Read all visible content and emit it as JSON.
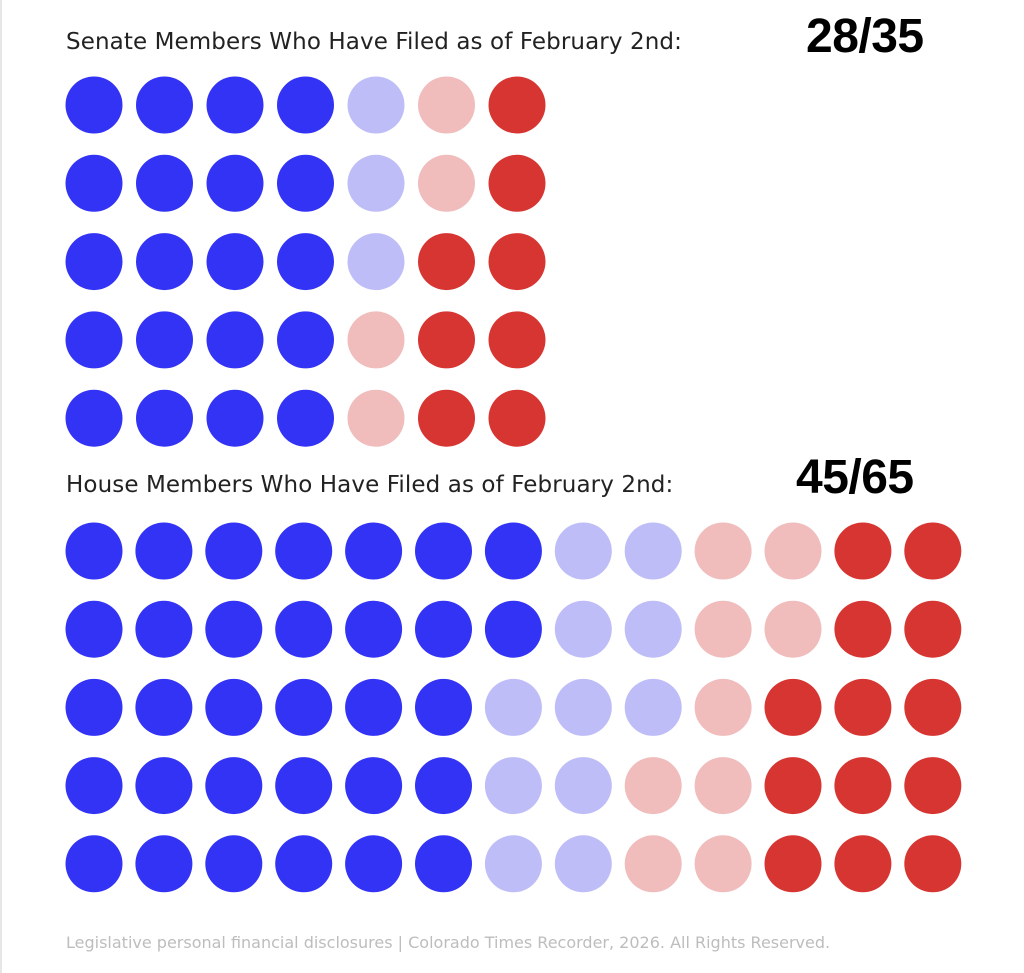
{
  "colors": {
    "dem_filed": "#3333f5",
    "dem_not_filed": "#bebdf8",
    "rep_not_filed": "#f0bcbc",
    "rep_filed": "#d63531"
  },
  "chart_data": [
    {
      "type": "waffle",
      "title": "Senate Members Who Have Filed as of February 2nd:",
      "summary": "28/35",
      "rows": 5,
      "columns": 7,
      "categories": [
        "dem_filed",
        "dem_not_filed",
        "rep_not_filed",
        "rep_filed"
      ],
      "grid": [
        [
          "dem_filed",
          "dem_filed",
          "dem_filed",
          "dem_filed",
          "dem_not_filed",
          "rep_not_filed",
          "rep_filed"
        ],
        [
          "dem_filed",
          "dem_filed",
          "dem_filed",
          "dem_filed",
          "dem_not_filed",
          "rep_not_filed",
          "rep_filed"
        ],
        [
          "dem_filed",
          "dem_filed",
          "dem_filed",
          "dem_filed",
          "dem_not_filed",
          "rep_filed",
          "rep_filed"
        ],
        [
          "dem_filed",
          "dem_filed",
          "dem_filed",
          "dem_filed",
          "rep_not_filed",
          "rep_filed",
          "rep_filed"
        ],
        [
          "dem_filed",
          "dem_filed",
          "dem_filed",
          "dem_filed",
          "rep_not_filed",
          "rep_filed",
          "rep_filed"
        ]
      ]
    },
    {
      "type": "waffle",
      "title": "House Members Who Have Filed as of February 2nd:",
      "summary": "45/65",
      "rows": 5,
      "columns": 13,
      "categories": [
        "dem_filed",
        "dem_not_filed",
        "rep_not_filed",
        "rep_filed"
      ],
      "grid": [
        [
          "dem_filed",
          "dem_filed",
          "dem_filed",
          "dem_filed",
          "dem_filed",
          "dem_filed",
          "dem_filed",
          "dem_not_filed",
          "dem_not_filed",
          "rep_not_filed",
          "rep_not_filed",
          "rep_filed",
          "rep_filed"
        ],
        [
          "dem_filed",
          "dem_filed",
          "dem_filed",
          "dem_filed",
          "dem_filed",
          "dem_filed",
          "dem_filed",
          "dem_not_filed",
          "dem_not_filed",
          "rep_not_filed",
          "rep_not_filed",
          "rep_filed",
          "rep_filed"
        ],
        [
          "dem_filed",
          "dem_filed",
          "dem_filed",
          "dem_filed",
          "dem_filed",
          "dem_filed",
          "dem_not_filed",
          "dem_not_filed",
          "dem_not_filed",
          "rep_not_filed",
          "rep_filed",
          "rep_filed",
          "rep_filed"
        ],
        [
          "dem_filed",
          "dem_filed",
          "dem_filed",
          "dem_filed",
          "dem_filed",
          "dem_filed",
          "dem_not_filed",
          "dem_not_filed",
          "rep_not_filed",
          "rep_not_filed",
          "rep_filed",
          "rep_filed",
          "rep_filed"
        ],
        [
          "dem_filed",
          "dem_filed",
          "dem_filed",
          "dem_filed",
          "dem_filed",
          "dem_filed",
          "dem_not_filed",
          "dem_not_filed",
          "rep_not_filed",
          "rep_not_filed",
          "rep_filed",
          "rep_filed",
          "rep_filed"
        ]
      ]
    }
  ],
  "footer": "Legislative personal financial disclosures | Colorado Times Recorder, 2026. All Rights Reserved."
}
